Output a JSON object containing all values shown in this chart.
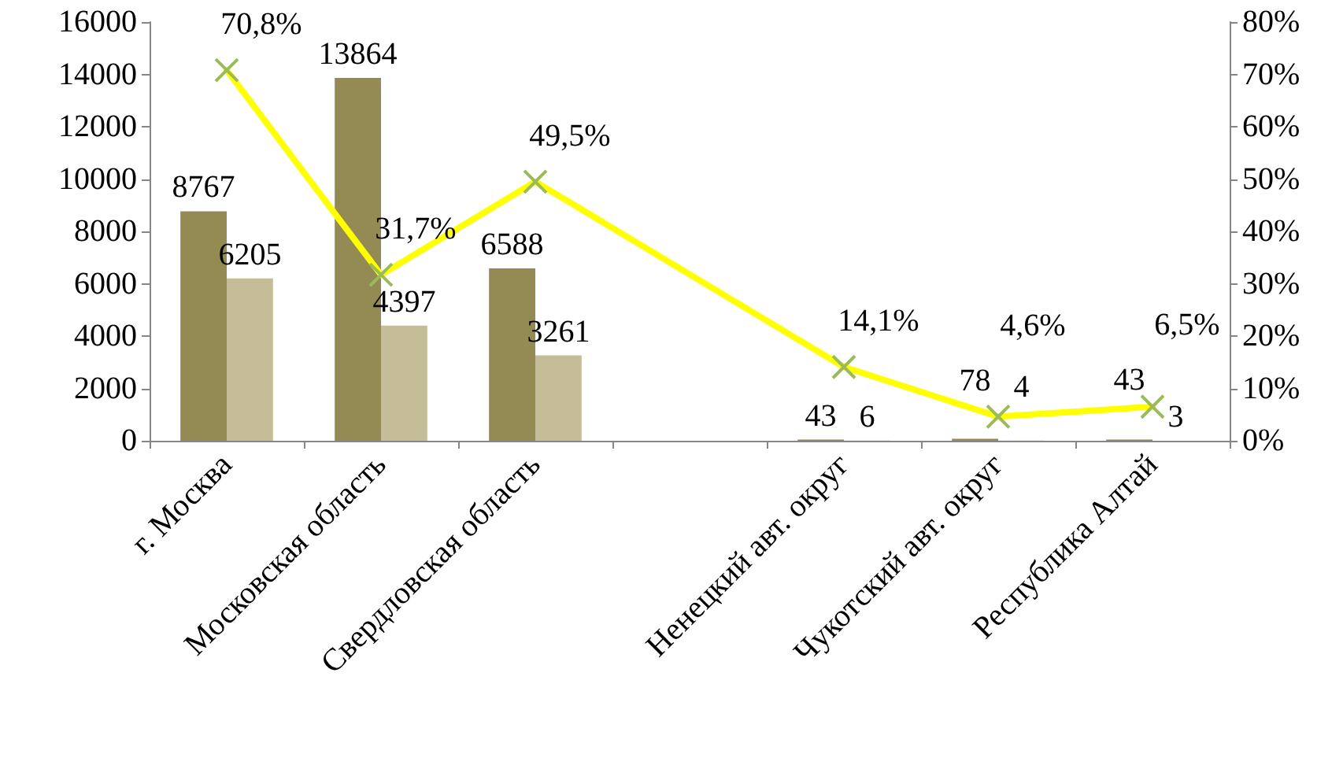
{
  "chart_data": {
    "type": "bar",
    "categories": [
      "г. Москва",
      "Московская область",
      "Свердловская область",
      null,
      "Ненецкий авт. округ",
      "Чукотский авт. округ",
      "Республика Алтай"
    ],
    "series": [
      {
        "color": "#948a54",
        "values": [
          8767,
          13864,
          6588,
          null,
          43,
          78,
          43
        ],
        "value_labels": [
          "8767",
          "13864",
          "6588",
          null,
          "43",
          "78",
          "43"
        ]
      },
      {
        "color": "#c4bd97",
        "values": [
          6205,
          4397,
          3261,
          null,
          6,
          4,
          3
        ],
        "value_labels": [
          "6205",
          "4397",
          "3261",
          null,
          "6",
          "4",
          "3"
        ]
      },
      {
        "type": "line",
        "axis": "y2",
        "color": "#ffff00",
        "marker": "cross",
        "values": [
          70.8,
          31.7,
          49.5,
          null,
          14.1,
          4.6,
          6.5
        ],
        "value_labels": [
          "70,8%",
          "31,7%",
          "49,5%",
          null,
          "14,1%",
          "4,6%",
          "6,5%"
        ]
      }
    ],
    "ylim": [
      0,
      16000
    ],
    "yticks": [
      0,
      2000,
      4000,
      6000,
      8000,
      10000,
      12000,
      14000,
      16000
    ],
    "y2lim": [
      0,
      80
    ],
    "y2ticks": [
      {
        "value": 0,
        "label": "0%"
      },
      {
        "value": 10,
        "label": "10%"
      },
      {
        "value": 20,
        "label": "20%"
      },
      {
        "value": 30,
        "label": "30%"
      },
      {
        "value": 40,
        "label": "40%"
      },
      {
        "value": 50,
        "label": "50%"
      },
      {
        "value": 60,
        "label": "60%"
      },
      {
        "value": 70,
        "label": "70%"
      },
      {
        "value": 80,
        "label": "80%"
      }
    ],
    "grid": false
  }
}
